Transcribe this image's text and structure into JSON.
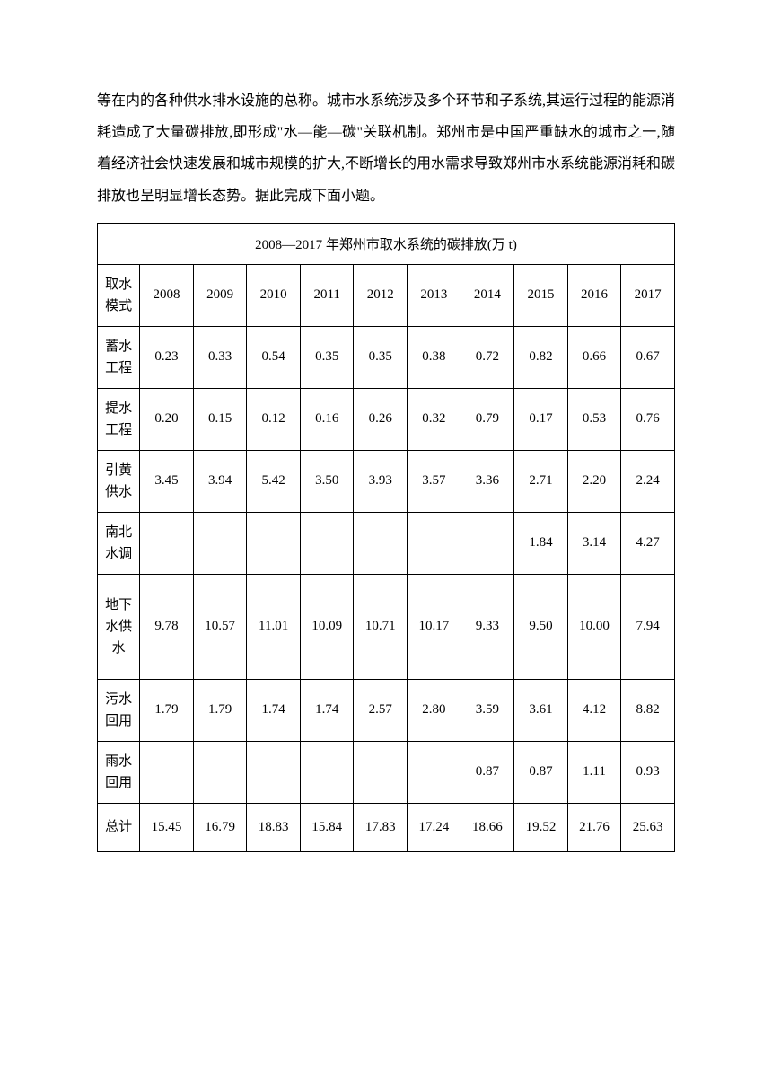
{
  "intro": "等在内的各种供水排水设施的总称。城市水系统涉及多个环节和子系统,其运行过程的能源消耗造成了大量碳排放,即形成\"水—能—碳\"关联机制。郑州市是中国严重缺水的城市之一,随着经济社会快速发展和城市规模的扩大,不断增长的用水需求导致郑州市水系统能源消耗和碳排放也呈明显增长态势。据此完成下面小题。",
  "table": {
    "title": "2008—2017 年郑州市取水系统的碳排放(万 t)",
    "header_label": "取水模式",
    "years": [
      "2008",
      "2009",
      "2010",
      "2011",
      "2012",
      "2013",
      "2014",
      "2015",
      "2016",
      "2017"
    ],
    "rows": [
      {
        "label": "蓄水工程",
        "values": [
          "0.23",
          "0.33",
          "0.54",
          "0.35",
          "0.35",
          "0.38",
          "0.72",
          "0.82",
          "0.66",
          "0.67"
        ]
      },
      {
        "label": "提水工程",
        "values": [
          "0.20",
          "0.15",
          "0.12",
          "0.16",
          "0.26",
          "0.32",
          "0.79",
          "0.17",
          "0.53",
          "0.76"
        ]
      },
      {
        "label": "引黄供水",
        "values": [
          "3.45",
          "3.94",
          "5.42",
          "3.50",
          "3.93",
          "3.57",
          "3.36",
          "2.71",
          "2.20",
          "2.24"
        ]
      },
      {
        "label": "南北水调",
        "values": [
          "",
          "",
          "",
          "",
          "",
          "",
          "",
          "1.84",
          "3.14",
          "4.27"
        ]
      },
      {
        "label": "地下水供水",
        "values": [
          "9.78",
          "10.57",
          "11.01",
          "10.09",
          "10.71",
          "10.17",
          "9.33",
          "9.50",
          "10.00",
          "7.94"
        ]
      },
      {
        "label": "污水回用",
        "values": [
          "1.79",
          "1.79",
          "1.74",
          "1.74",
          "2.57",
          "2.80",
          "3.59",
          "3.61",
          "4.12",
          "8.82"
        ]
      },
      {
        "label": "雨水回用",
        "values": [
          "",
          "",
          "",
          "",
          "",
          "",
          "0.87",
          "0.87",
          "1.11",
          "0.93"
        ]
      },
      {
        "label": "总计",
        "values": [
          "15.45",
          "16.79",
          "18.83",
          "15.84",
          "17.83",
          "17.24",
          "18.66",
          "19.52",
          "21.76",
          "25.63"
        ]
      }
    ]
  }
}
